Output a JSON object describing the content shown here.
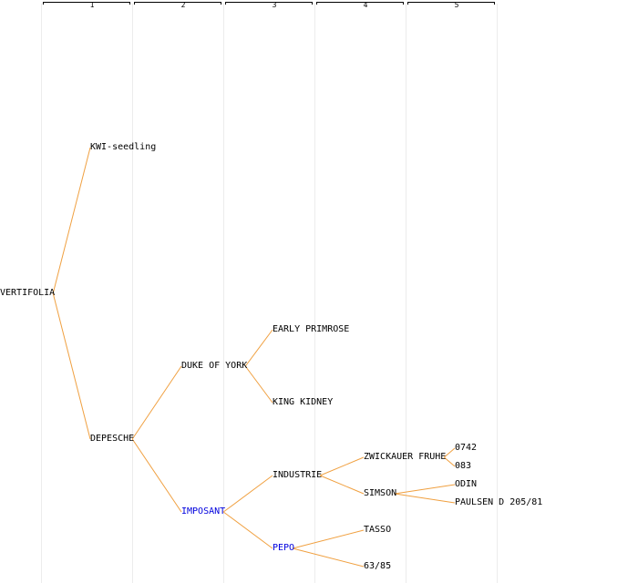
{
  "generations": [
    "1",
    "2",
    "3",
    "4",
    "5"
  ],
  "colors": {
    "edge": "#f0a040",
    "label": "#000000",
    "highlight": "#0000dd",
    "guide": "#ececec"
  },
  "nodes": {
    "vertifolia": {
      "label": "VERTIFOLIA"
    },
    "kwi_seedling": {
      "label": "KWI-seedling"
    },
    "depesche": {
      "label": "DEPESCHE"
    },
    "duke_of_york": {
      "label": "DUKE OF YORK"
    },
    "imposant": {
      "label": "IMPOSANT",
      "highlight": true
    },
    "early_primrose": {
      "label": "EARLY PRIMROSE"
    },
    "king_kidney": {
      "label": "KING KIDNEY"
    },
    "industrie": {
      "label": "INDUSTRIE"
    },
    "pepo": {
      "label": "PEPO",
      "highlight": true
    },
    "zwickauer_fruhe": {
      "label": "ZWICKAUER FRUHE"
    },
    "simson": {
      "label": "SIMSON"
    },
    "tasso": {
      "label": "TASSO"
    },
    "n63_85": {
      "label": "63/85"
    },
    "n0742": {
      "label": "0742"
    },
    "n083": {
      "label": "083"
    },
    "odin": {
      "label": "ODIN"
    },
    "paulsen": {
      "label": "PAULSEN D 205/81"
    }
  },
  "edges": [
    [
      "vertifolia",
      "kwi_seedling"
    ],
    [
      "vertifolia",
      "depesche"
    ],
    [
      "depesche",
      "duke_of_york"
    ],
    [
      "depesche",
      "imposant"
    ],
    [
      "duke_of_york",
      "early_primrose"
    ],
    [
      "duke_of_york",
      "king_kidney"
    ],
    [
      "imposant",
      "industrie"
    ],
    [
      "imposant",
      "pepo"
    ],
    [
      "industrie",
      "zwickauer_fruhe"
    ],
    [
      "industrie",
      "simson"
    ],
    [
      "pepo",
      "tasso"
    ],
    [
      "pepo",
      "n63_85"
    ],
    [
      "zwickauer_fruhe",
      "n0742"
    ],
    [
      "zwickauer_fruhe",
      "n083"
    ],
    [
      "simson",
      "odin"
    ],
    [
      "simson",
      "paulsen"
    ]
  ]
}
